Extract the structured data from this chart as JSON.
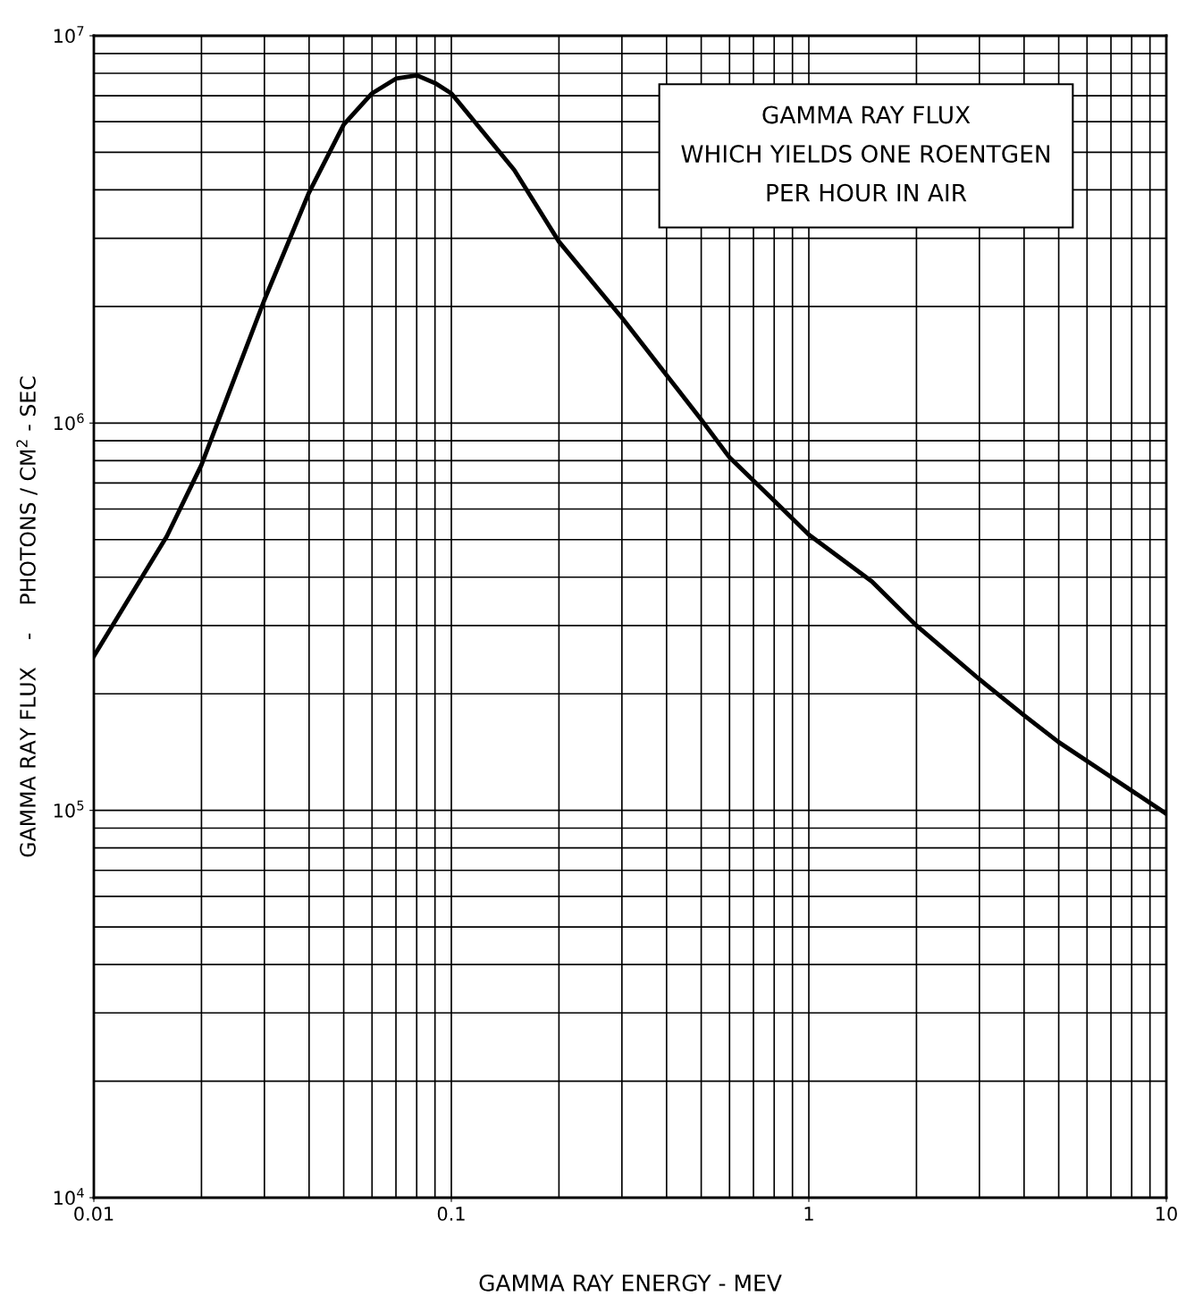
{
  "chart_data": {
    "type": "line",
    "title": "GAMMA RAY FLUX\nWHICH YIELDS ONE ROENTGEN\nPER HOUR IN AIR",
    "xlabel": "GAMMA RAY ENERGY - MEV",
    "ylabel": "GAMMA RAY FLUX    -    PHOTONS / CM$^{2}$ - SEC",
    "log": "xy",
    "grid": true,
    "xlim": [
      0.01,
      10
    ],
    "ylim": [
      10000,
      10000000
    ],
    "xticks": [
      0.01,
      0.1,
      1,
      10
    ],
    "yticks": [
      {
        "value": 10000,
        "label": "10$^{4}$"
      },
      {
        "value": 100000,
        "label": "10$^{5}$"
      },
      {
        "value": 1000000,
        "label": "10$^{6}$"
      },
      {
        "value": 10000000,
        "label": "10$^{7}$"
      }
    ],
    "series": [
      {
        "color": "#000000",
        "x": [
          0.01,
          0.016,
          0.02,
          0.03,
          0.04,
          0.05,
          0.06,
          0.07,
          0.08,
          0.09,
          0.1,
          0.15,
          0.2,
          0.3,
          0.4,
          0.5,
          0.6,
          0.8,
          1,
          1.5,
          2,
          3,
          4,
          5,
          7,
          10
        ],
        "values": [
          250000,
          510000,
          780000,
          2080000,
          3940000,
          5900000,
          7100000,
          7750000,
          7900000,
          7550000,
          7100000,
          4500000,
          2940000,
          1870000,
          1330000,
          1020000,
          815000,
          630000,
          515000,
          390000,
          300000,
          218000,
          176000,
          150000,
          122000,
          98000
        ]
      }
    ]
  }
}
